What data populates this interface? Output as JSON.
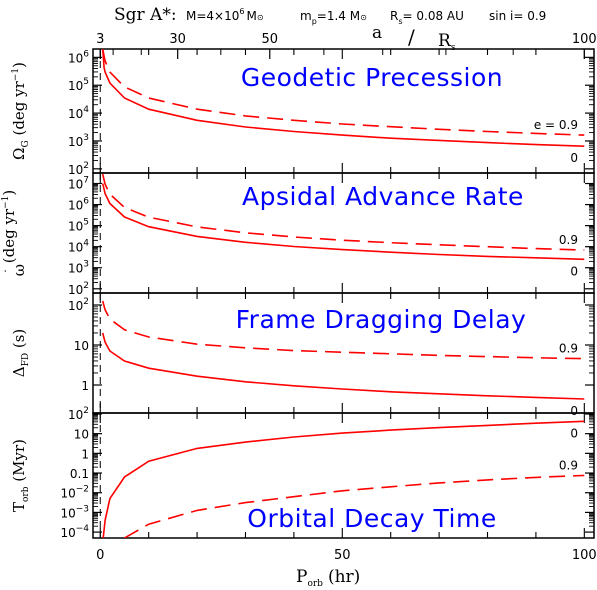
{
  "header": {
    "object": "Sgr A*:",
    "mass_label": "M=4×10",
    "mass_exp": "6",
    "mass_unit": "M",
    "mp_label": "m",
    "mp_sub": "p",
    "mp_value": "=1.4 M",
    "rs_label": "R",
    "rs_sub": "s",
    "rs_value": "= 0.08 AU",
    "sini": "sin i= 0.9"
  },
  "top_axis": {
    "label_a": "a",
    "label_slash": "/",
    "label_r": "R",
    "label_sub": "s",
    "ticks": [
      {
        "value": 3,
        "label": "3"
      },
      {
        "value": 30,
        "label": "30"
      },
      {
        "value": 50,
        "label": "50"
      },
      {
        "value": 100,
        "label": "100"
      }
    ]
  },
  "bottom_axis": {
    "label": "P",
    "label_sub": "orb",
    "label_unit": "(hr)",
    "ticks": [
      "0",
      "50",
      "100"
    ]
  },
  "chart_data": [
    {
      "type": "line",
      "title": "Geodetic Precession",
      "ylabel": "Ω",
      "ylabel_sub": "G",
      "ylabel_unit": "(deg yr",
      "ylabel_exp": "−1",
      "ylabel_close": ")",
      "yscale": "log",
      "ylim_log10": [
        1.85,
        6.3
      ],
      "xlim": [
        -1.5,
        102
      ],
      "yticks": [
        {
          "base": "10",
          "exp": "2",
          "log": 2
        },
        {
          "base": "10",
          "exp": "3",
          "log": 3
        },
        {
          "base": "10",
          "exp": "4",
          "log": 4
        },
        {
          "base": "10",
          "exp": "5",
          "log": 5
        },
        {
          "base": "10",
          "exp": "6",
          "log": 6
        }
      ],
      "series": [
        {
          "name": "e = 0.9",
          "style": "dashed",
          "points": [
            [
              0.5,
              6.3
            ],
            [
              1,
              5.87
            ],
            [
              2,
              5.47
            ],
            [
              5,
              4.94
            ],
            [
              10,
              4.54
            ],
            [
              20,
              4.14
            ],
            [
              30,
              3.9
            ],
            [
              40,
              3.74
            ],
            [
              50,
              3.61
            ],
            [
              60,
              3.51
            ],
            [
              70,
              3.42
            ],
            [
              80,
              3.34
            ],
            [
              90,
              3.27
            ],
            [
              100,
              3.21
            ]
          ]
        },
        {
          "name": "0",
          "style": "solid",
          "points": [
            [
              0.5,
              6.3
            ],
            [
              0.8,
              5.63
            ],
            [
              1,
              5.47
            ],
            [
              2,
              5.08
            ],
            [
              5,
              4.54
            ],
            [
              10,
              4.14
            ],
            [
              20,
              3.74
            ],
            [
              30,
              3.5
            ],
            [
              40,
              3.34
            ],
            [
              50,
              3.21
            ],
            [
              60,
              3.1
            ],
            [
              70,
              3.02
            ],
            [
              80,
              2.94
            ],
            [
              90,
              2.87
            ],
            [
              100,
              2.81
            ]
          ]
        }
      ]
    },
    {
      "type": "line",
      "title": "Apsidal Advance Rate",
      "ylabel": "ω",
      "ylabel_dot": "˙",
      "ylabel_unit": "(deg yr",
      "ylabel_exp": "−1",
      "ylabel_close": ")",
      "yscale": "log",
      "ylim_log10": [
        1.8,
        7.5
      ],
      "xlim": [
        -1.5,
        102
      ],
      "yticks": [
        {
          "base": "10",
          "exp": "2",
          "log": 2
        },
        {
          "base": "10",
          "exp": "3",
          "log": 3
        },
        {
          "base": "10",
          "exp": "4",
          "log": 4
        },
        {
          "base": "10",
          "exp": "5",
          "log": 5
        },
        {
          "base": "10",
          "exp": "6",
          "log": 6
        },
        {
          "base": "10",
          "exp": "7",
          "log": 7
        }
      ],
      "series": [
        {
          "name": "0.9",
          "style": "dashed",
          "points": [
            [
              0.5,
              7.45
            ],
            [
              1,
              6.97
            ],
            [
              2,
              6.5
            ],
            [
              5,
              5.86
            ],
            [
              10,
              5.4
            ],
            [
              20,
              4.94
            ],
            [
              30,
              4.66
            ],
            [
              40,
              4.46
            ],
            [
              50,
              4.31
            ],
            [
              60,
              4.19
            ],
            [
              70,
              4.09
            ],
            [
              80,
              4.0
            ],
            [
              90,
              3.91
            ],
            [
              100,
              3.84
            ]
          ]
        },
        {
          "name": "0",
          "style": "solid",
          "points": [
            [
              0.5,
              7.0
            ],
            [
              1,
              6.52
            ],
            [
              2,
              6.05
            ],
            [
              5,
              5.41
            ],
            [
              10,
              4.95
            ],
            [
              20,
              4.49
            ],
            [
              30,
              4.21
            ],
            [
              40,
              4.01
            ],
            [
              50,
              3.86
            ],
            [
              60,
              3.74
            ],
            [
              70,
              3.63
            ],
            [
              80,
              3.54
            ],
            [
              90,
              3.47
            ],
            [
              100,
              3.4
            ]
          ]
        }
      ]
    },
    {
      "type": "line",
      "title": "Frame Dragging Delay",
      "ylabel": "Δ",
      "ylabel_sub": "FD",
      "ylabel_unit": "(s)",
      "yscale": "log",
      "ylim_log10": [
        -0.7,
        2.3
      ],
      "xlim": [
        -1.5,
        102
      ],
      "yticks": [
        {
          "label": "1",
          "log": 0
        },
        {
          "label": "10",
          "log": 1
        },
        {
          "base": "10",
          "exp": "2",
          "log": 2
        }
      ],
      "series": [
        {
          "name": "0.9",
          "style": "dashed",
          "points": [
            [
              0.5,
              2.1
            ],
            [
              1,
              1.88
            ],
            [
              2,
              1.65
            ],
            [
              5,
              1.38
            ],
            [
              10,
              1.2
            ],
            [
              20,
              1.02
            ],
            [
              30,
              0.93
            ],
            [
              40,
              0.86
            ],
            [
              50,
              0.82
            ],
            [
              60,
              0.78
            ],
            [
              70,
              0.74
            ],
            [
              80,
              0.71
            ],
            [
              90,
              0.68
            ],
            [
              100,
              0.66
            ]
          ]
        },
        {
          "name": "0",
          "style": "solid",
          "points": [
            [
              0.5,
              1.3
            ],
            [
              1,
              1.07
            ],
            [
              2,
              0.85
            ],
            [
              5,
              0.6
            ],
            [
              10,
              0.42
            ],
            [
              20,
              0.22
            ],
            [
              30,
              0.08
            ],
            [
              40,
              -0.02
            ],
            [
              50,
              -0.1
            ],
            [
              60,
              -0.17
            ],
            [
              70,
              -0.22
            ],
            [
              80,
              -0.27
            ],
            [
              90,
              -0.31
            ],
            [
              100,
              -0.35
            ]
          ]
        }
      ]
    },
    {
      "type": "line",
      "title": "Orbital Decay Time",
      "ylabel": "T",
      "ylabel_sub": "orb",
      "ylabel_unit": "(Myr)",
      "yscale": "log",
      "ylim_log10": [
        -4.3,
        2.05
      ],
      "xlim": [
        -1.5,
        102
      ],
      "yticks": [
        {
          "base": "10",
          "exp": "−4",
          "log": -4
        },
        {
          "base": "10",
          "exp": "−3",
          "log": -3
        },
        {
          "base": "10",
          "exp": "−2",
          "log": -2
        },
        {
          "label": "0.1",
          "log": -1
        },
        {
          "label": "1",
          "log": 0
        },
        {
          "label": "10",
          "log": 1
        },
        {
          "base": "10",
          "exp": "2",
          "log": 2
        }
      ],
      "series": [
        {
          "name": "0",
          "style": "solid",
          "points": [
            [
              0.6,
              -4.3
            ],
            [
              1,
              -3.4
            ],
            [
              2,
              -2.3
            ],
            [
              5,
              -1.2
            ],
            [
              10,
              -0.4
            ],
            [
              20,
              0.25
            ],
            [
              30,
              0.57
            ],
            [
              40,
              0.83
            ],
            [
              50,
              1.03
            ],
            [
              60,
              1.18
            ],
            [
              70,
              1.31
            ],
            [
              80,
              1.42
            ],
            [
              90,
              1.53
            ],
            [
              100,
              1.63
            ]
          ]
        },
        {
          "name": "0.9",
          "style": "dashed",
          "points": [
            [
              5,
              -4.3
            ],
            [
              10,
              -3.6
            ],
            [
              20,
              -2.9
            ],
            [
              30,
              -2.5
            ],
            [
              40,
              -2.2
            ],
            [
              50,
              -1.9
            ],
            [
              60,
              -1.7
            ],
            [
              70,
              -1.5
            ],
            [
              80,
              -1.35
            ],
            [
              90,
              -1.22
            ],
            [
              100,
              -1.12
            ]
          ]
        }
      ]
    }
  ],
  "colors": {
    "curve": "#ff0000",
    "title": "#0000ff",
    "axis": "#000000"
  },
  "legend_e_prefix": "e = "
}
